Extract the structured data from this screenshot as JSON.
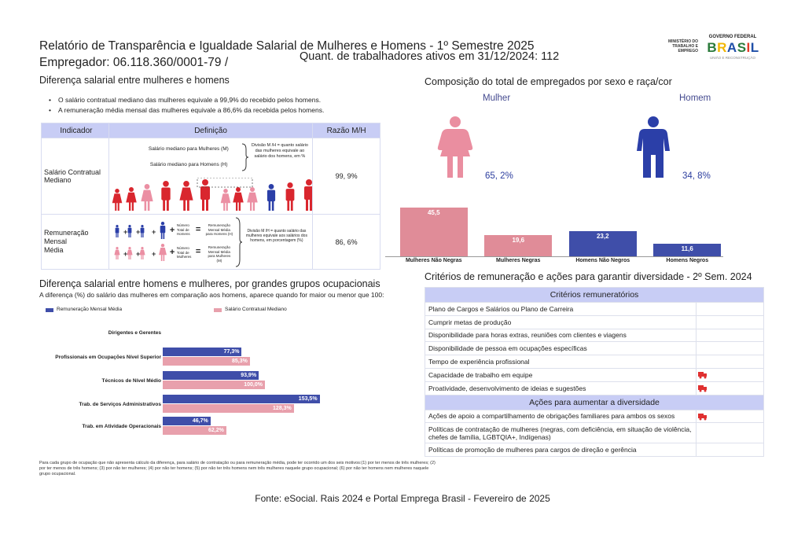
{
  "header": {
    "title": "Relatório de Transparência e Igualdade Salarial de Mulheres e Homens - 1º Semestre 2025",
    "employer": "Empregador: 06.118.360/0001-79 /",
    "active_workers": "Quant. de trabalhadores ativos em 31/12/2024: 112",
    "logo_ministry": "MINISTÉRIO DO TRABALHO E EMPREGO",
    "logo_gov": "GOVERNO FEDERAL",
    "logo_brasil": "BRASIL",
    "logo_union": "UNIÃO E RECONSTRUÇÃO"
  },
  "salary_diff": {
    "title": "Diferença salarial entre mulheres e homens",
    "bullets": [
      "O salário contratual mediano das mulheres equivale a 99,9% do recebido pelos homens.",
      "A remuneração média mensal das mulheres equivale a 86,6% da recebida pelos homens."
    ],
    "table": {
      "headers": [
        "Indicador",
        "Definição",
        "Razão M/H"
      ],
      "rows": [
        {
          "indicator": "Salário Contratual Mediano",
          "ratio": "99, 9%",
          "def_women": "Salário mediano para Mulheres (M)",
          "def_men": "Salário mediano para Homens (H)",
          "def_text": "Divisão M /H = quanto salário das mulheres equivale ao salário dos homens, em %"
        },
        {
          "indicator": "Remuneração Mensal Média",
          "ratio": "86, 6%",
          "def_total_men": "Número Total de Homens",
          "def_rem_men": "Remuneração Mensal Média para Homens (H)",
          "def_total_women": "Número Total de Mulheres",
          "def_rem_women": "Remuneração Mensal Média para Mulheres (M)",
          "def_text": "Divisão M /H = quanto salário das mulheres equivale aos salários dos homens, em porcentagem (%)",
          "plus": "+",
          "equals": "="
        }
      ]
    }
  },
  "composition": {
    "title": "Composição do total de empregados por sexo e raça/cor",
    "women_label": "Mulher",
    "men_label": "Homem",
    "women_pct": "65, 2%",
    "men_pct": "34, 8%",
    "women_color": "#e48a9a",
    "men_color": "#2b3fa8",
    "chart_data": {
      "type": "bar",
      "categories": [
        "Mulheres Não Negras",
        "Mulheres Negras",
        "Homens Não Negros",
        "Homens Negros"
      ],
      "values": [
        45.5,
        19.6,
        23.2,
        11.6
      ],
      "value_labels": [
        "45,5",
        "19,6",
        "23,2",
        "11,6"
      ],
      "colors": [
        "#e08c98",
        "#e08c98",
        "#3f4ea9",
        "#3f4ea9"
      ],
      "ylim": [
        0,
        50
      ]
    }
  },
  "groups": {
    "title": "Diferença salarial entre homens e mulheres, por grandes grupos ocupacionais",
    "subtitle": "A diferença (%) do salário das mulheres em comparação aos homens, aparece quando for maior ou menor que 100:",
    "chart_data": {
      "type": "bar",
      "orientation": "horizontal",
      "categories": [
        "Dirigentes e Gerentes",
        "Profissionais em Ocupações Nível Superior",
        "Técnicos de Nível Médio",
        "Trab. de Serviços Administrativos",
        "Trab. em Atividade Operacionais"
      ],
      "series": [
        {
          "name": "Remuneração Mensal Média",
          "color": "#3f4ea9",
          "values": [
            null,
            77.3,
            93.9,
            153.5,
            46.7
          ],
          "labels": [
            "",
            "77,3%",
            "93,9%",
            "153,5%",
            "46,7%"
          ]
        },
        {
          "name": "Salário Contratual Mediano",
          "color": "#e8a0ac",
          "values": [
            null,
            85.3,
            100.0,
            128.3,
            62.2
          ],
          "labels": [
            "",
            "85,3%",
            "100,0%",
            "128,3%",
            "62,2%"
          ]
        }
      ],
      "xlim": [
        0,
        160
      ],
      "legend": "top-left"
    },
    "note": "Para cada grupo de ocupação que não apresenta cálculo da diferença, para salário de contratação ou para remuneração média, pode ter ocorrido um dos seis motivos:(1) por ter menos de três mulheres; (2) por ter menos de três homens; (3) por não ter mulheres; (4) por não ter homens; (5) por não ter três homens nem três mulheres naquele grupo ocupacional; (6) por não ter homens nem mulheres naquele grupo ocupacional."
  },
  "criteria": {
    "title": "Critérios de remuneração e ações para garantir diversidade - 2º Sem. 2024",
    "remuneration_header": "Critérios remuneratórios",
    "remuneration_items": [
      {
        "label": "Plano de Cargos e Salários ou Plano de Carreira",
        "checked": false
      },
      {
        "label": "Cumprir metas de produção",
        "checked": false
      },
      {
        "label": "Disponibilidade para horas extras, reuniões com clientes e viagens",
        "checked": false
      },
      {
        "label": "Disponibilidade de pessoa em ocupações específicas",
        "checked": false
      },
      {
        "label": "Tempo de experiência profissional",
        "checked": false
      },
      {
        "label": "Capacidade de trabalho em equipe",
        "checked": true
      },
      {
        "label": "Proatividade, desenvolvimento de ideias e sugestões",
        "checked": true
      }
    ],
    "diversity_header": "Ações para aumentar a diversidade",
    "diversity_items": [
      {
        "label": "Ações de apoio a compartilhamento de obrigações familiares para ambos os sexos",
        "checked": true
      },
      {
        "label": "Políticas de contratação de mulheres (negras, com deficiência, em situação de violência, chefes de família, LGBTQIA+, Indígenas)",
        "checked": false
      },
      {
        "label": "Políticas de promoção de mulheres para cargos de direção e gerência",
        "checked": false
      }
    ],
    "check_icon_color": "#e03030"
  },
  "footer": {
    "source": "Fonte: eSocial. Rais 2024 e Portal Emprega Brasil - Fevereiro de 2025"
  }
}
